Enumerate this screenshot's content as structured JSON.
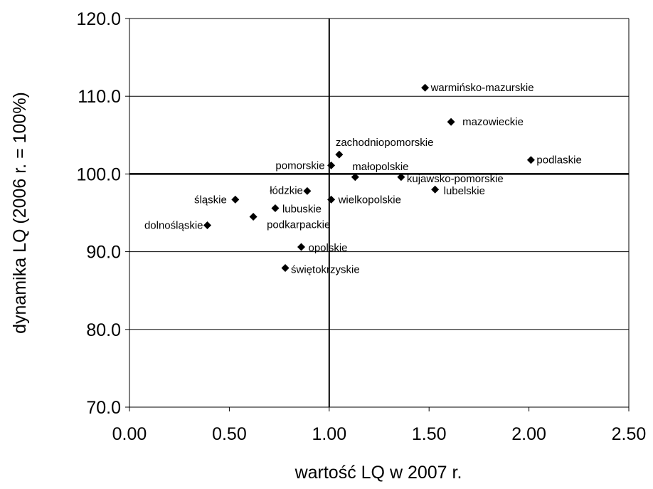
{
  "chart_data": {
    "type": "scatter",
    "title": "",
    "xlabel": "wartość LQ w 2007 r.",
    "ylabel": "dynamika LQ (2006 r. = 100%)",
    "xlim": [
      0,
      2.5
    ],
    "ylim": [
      70,
      120
    ],
    "x_ticks": [
      "0.00",
      "0.50",
      "1.00",
      "1.50",
      "2.00",
      "2.50"
    ],
    "y_ticks": [
      "70.0",
      "80.0",
      "90.0",
      "100.0",
      "110.0",
      "120.0"
    ],
    "grid": "horizontal",
    "reference_lines": {
      "x": 1.0,
      "y": 100.0
    },
    "marker": "diamond",
    "marker_color": "#000000",
    "points": [
      {
        "label": "warmińsko-mazurskie",
        "x": 1.48,
        "y": 111.1
      },
      {
        "label": "mazowieckie",
        "x": 1.61,
        "y": 106.7
      },
      {
        "label": "zachodniopomorskie",
        "x": 1.05,
        "y": 102.5
      },
      {
        "label": "podlaskie",
        "x": 2.01,
        "y": 101.8
      },
      {
        "label": "pomorskie",
        "x": 1.01,
        "y": 101.1
      },
      {
        "label": "małopolskie",
        "x": 1.13,
        "y": 99.6
      },
      {
        "label": "kujawsko-pomorskie",
        "x": 1.36,
        "y": 99.6
      },
      {
        "label": "łódzkie",
        "x": 0.89,
        "y": 97.8
      },
      {
        "label": "lubelskie",
        "x": 1.53,
        "y": 98.0
      },
      {
        "label": "śląskie",
        "x": 0.53,
        "y": 96.7
      },
      {
        "label": "wielkopolskie",
        "x": 1.01,
        "y": 96.7
      },
      {
        "label": "lubuskie",
        "x": 0.73,
        "y": 95.6
      },
      {
        "label": "podkarpackie",
        "x": 0.62,
        "y": 94.5
      },
      {
        "label": "dolnośląskie",
        "x": 0.39,
        "y": 93.4
      },
      {
        "label": "opolskie",
        "x": 0.86,
        "y": 90.6
      },
      {
        "label": "świętokrzyskie",
        "x": 0.78,
        "y": 87.9
      }
    ]
  }
}
